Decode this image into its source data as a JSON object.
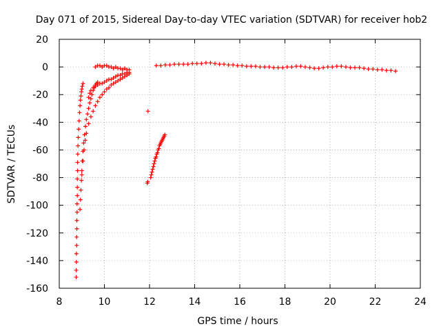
{
  "chart_data": {
    "type": "scatter",
    "title": "Day 071 of 2015, Sidereal Day-to-day VTEC variation (SDTVAR) for receiver hob2",
    "xlabel": "GPS time / hours",
    "ylabel": "SDTVAR / TECUs",
    "xlim": [
      8,
      24
    ],
    "ylim": [
      -160,
      20
    ],
    "xticks": [
      "8",
      "10",
      "12",
      "14",
      "16",
      "18",
      "20",
      "22",
      "24"
    ],
    "yticks": [
      "20",
      "0",
      "-20",
      "-40",
      "-60",
      "-80",
      "-100",
      "-120",
      "-140",
      "-160"
    ],
    "grid": true,
    "marker": "+",
    "color": "#ff0000",
    "series": [
      {
        "name": "steep branch near 8.8-8.9 h",
        "x": [
          8.75,
          8.75,
          8.76,
          8.76,
          8.77,
          8.77,
          8.78,
          8.78,
          8.79,
          8.79,
          8.8,
          8.8,
          8.8,
          8.81,
          8.81,
          8.82,
          8.83,
          8.84,
          8.86,
          8.88,
          8.9,
          8.92,
          8.94,
          8.96,
          8.98,
          9.0,
          9.02,
          9.05
        ],
        "y": [
          -152,
          -147,
          -141,
          -135,
          -129,
          -123,
          -117,
          -111,
          -105,
          -99,
          -93,
          -87,
          -81,
          -75,
          -69,
          -63,
          -57,
          -51,
          -45,
          -39,
          -33,
          -28,
          -24,
          -21,
          -18,
          -16,
          -14,
          -12
        ]
      },
      {
        "name": "middle branch 8.9-9.7 h",
        "x": [
          8.92,
          8.94,
          8.96,
          8.98,
          9.0,
          9.02,
          9.05,
          9.08,
          9.12,
          9.16,
          9.2,
          9.25,
          9.3,
          9.35,
          9.4,
          9.45,
          9.5,
          9.55,
          9.6,
          9.65,
          9.7
        ],
        "y": [
          -103,
          -96,
          -89,
          -82,
          -75,
          -68,
          -61,
          -55,
          -49,
          -43,
          -38,
          -34,
          -30,
          -26,
          -23,
          -20,
          -17,
          -15,
          -13,
          -12,
          -11
        ]
      },
      {
        "name": "lower branch 9.0-11.1 h",
        "x": [
          9.0,
          9.05,
          9.1,
          9.15,
          9.2,
          9.3,
          9.4,
          9.5,
          9.6,
          9.7,
          9.8,
          9.9,
          10.0,
          10.1,
          10.2,
          10.3,
          10.4,
          10.5,
          10.6,
          10.7,
          10.8,
          10.9,
          11.0,
          11.1
        ],
        "y": [
          -78,
          -68,
          -60,
          -53,
          -48,
          -41,
          -36,
          -32,
          -28,
          -25,
          -22,
          -20,
          -18,
          -16,
          -15,
          -13,
          -12,
          -11,
          -10,
          -9,
          -8,
          -7,
          -6,
          -5
        ]
      },
      {
        "name": "upper branch 9.3-11.1 h",
        "x": [
          9.3,
          9.35,
          9.4,
          9.5,
          9.6,
          9.7,
          9.8,
          9.9,
          10.0,
          10.1,
          10.2,
          10.3,
          10.4,
          10.5,
          10.6,
          10.7,
          10.8,
          10.9,
          11.0,
          11.1
        ],
        "y": [
          -22,
          -19,
          -17,
          -15,
          -14,
          -13,
          -12,
          -12,
          -11,
          -10,
          -9,
          -9,
          -8,
          -7,
          -6,
          -6,
          -5,
          -5,
          -4,
          -4
        ]
      },
      {
        "name": "near-zero segment 9.6-11.1 h",
        "x": [
          9.6,
          9.7,
          9.8,
          9.9,
          10.0,
          10.1,
          10.2,
          10.3,
          10.4,
          10.5,
          10.6,
          10.7,
          10.8,
          10.9,
          11.0,
          11.1
        ],
        "y": [
          0,
          1,
          1,
          0,
          1,
          1,
          0,
          0,
          -1,
          0,
          -1,
          -1,
          -2,
          -1,
          -2,
          -2
        ]
      },
      {
        "name": "isolated points near 11.9 h",
        "x": [
          11.93,
          11.9,
          11.92
        ],
        "y": [
          -32,
          -84,
          -83
        ]
      },
      {
        "name": "recovery segment 12.0-12.7 h",
        "x": [
          12.05,
          12.08,
          12.11,
          12.14,
          12.17,
          12.2,
          12.23,
          12.26,
          12.29,
          12.32,
          12.35,
          12.38,
          12.41,
          12.44,
          12.47,
          12.5,
          12.53,
          12.56,
          12.59,
          12.62,
          12.65,
          12.68
        ],
        "y": [
          -80,
          -78,
          -76,
          -74,
          -72,
          -70,
          -68,
          -66,
          -65,
          -63,
          -62,
          -60,
          -59,
          -57,
          -56,
          -55,
          -54,
          -53,
          -52,
          -51,
          -50,
          -49
        ]
      },
      {
        "name": "main band 12.3-23.0 h",
        "x": [
          12.3,
          12.5,
          12.7,
          12.9,
          13.1,
          13.3,
          13.5,
          13.7,
          13.9,
          14.1,
          14.3,
          14.5,
          14.7,
          14.9,
          15.1,
          15.3,
          15.5,
          15.7,
          15.9,
          16.1,
          16.3,
          16.5,
          16.7,
          16.9,
          17.1,
          17.3,
          17.5,
          17.7,
          17.9,
          18.1,
          18.3,
          18.5,
          18.7,
          18.9,
          19.1,
          19.3,
          19.5,
          19.7,
          19.9,
          20.1,
          20.3,
          20.5,
          20.7,
          20.9,
          21.1,
          21.3,
          21.5,
          21.7,
          21.9,
          22.1,
          22.3,
          22.5,
          22.7,
          22.9
        ],
        "y": [
          1,
          1,
          1.5,
          1.5,
          2,
          2,
          2,
          2,
          2.5,
          2.5,
          2.5,
          3,
          3,
          2.5,
          2,
          2,
          1.5,
          1.5,
          1,
          1,
          0.5,
          0.5,
          0.5,
          0,
          0,
          0,
          -0.5,
          -0.5,
          -0.5,
          0,
          0,
          0.5,
          0.5,
          0,
          -0.5,
          -1,
          -1,
          -0.5,
          0,
          0,
          0.5,
          0.5,
          0,
          -0.5,
          -0.5,
          -0.5,
          -1,
          -1.5,
          -1.5,
          -2,
          -2,
          -2.5,
          -2.5,
          -3
        ]
      }
    ]
  }
}
